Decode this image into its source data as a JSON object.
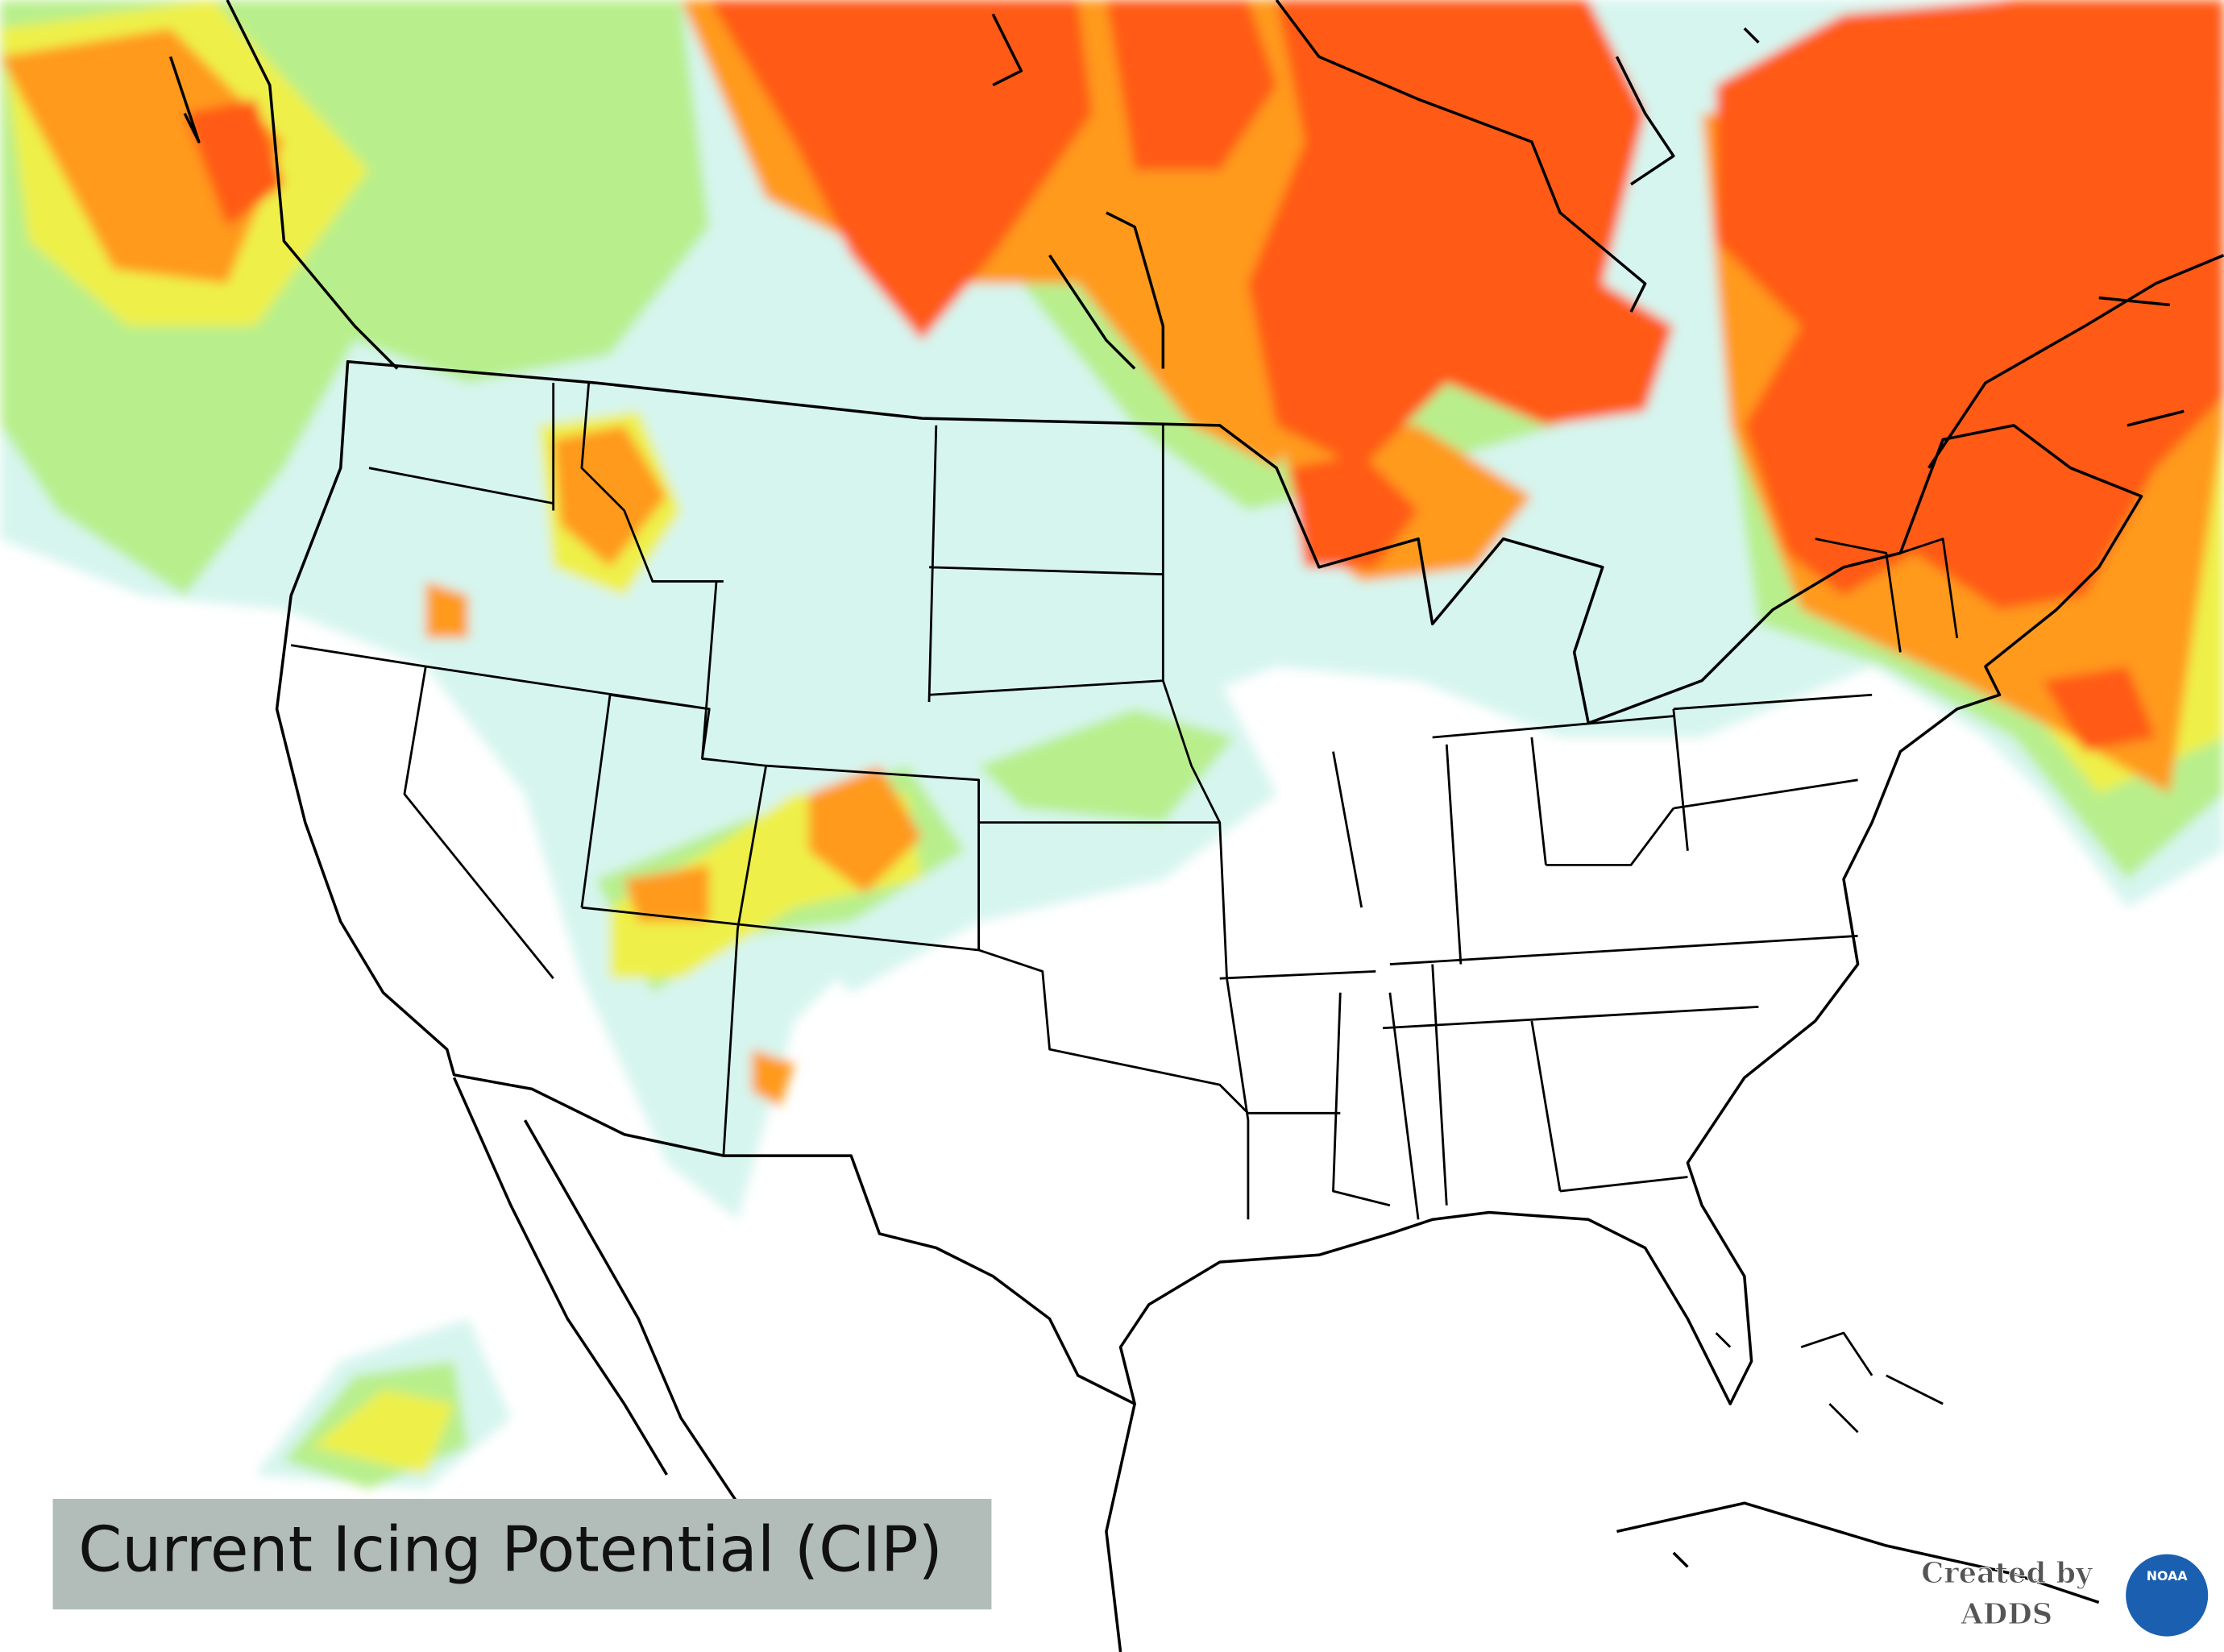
{
  "title": "Current Icing Potential (CIP)",
  "credit": {
    "line1": "Created by",
    "line2": "ADDS",
    "logo": "NOAA"
  }
}
